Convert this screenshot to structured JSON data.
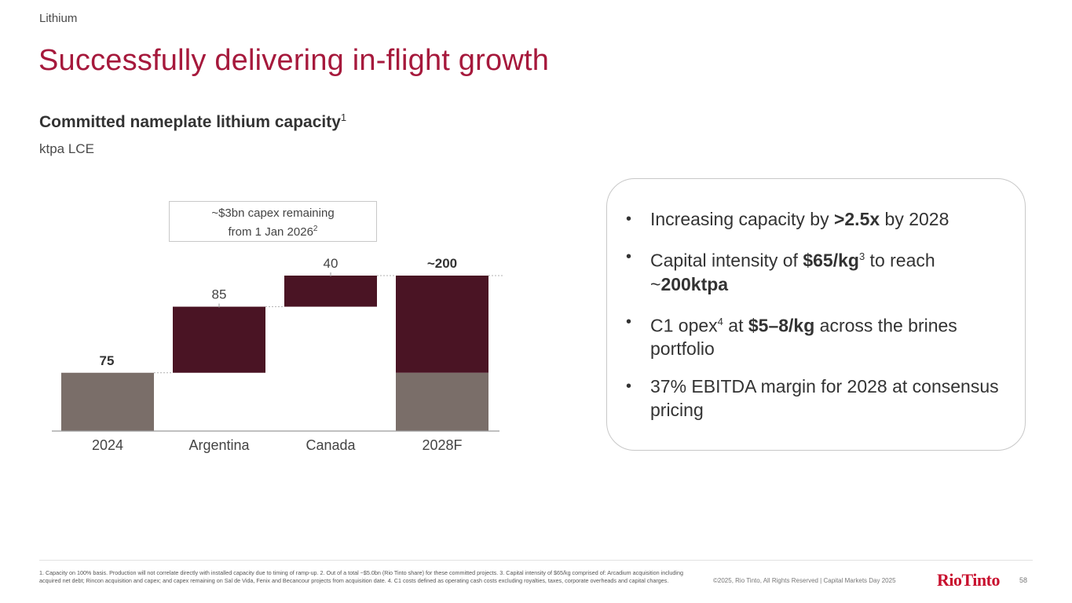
{
  "header": {
    "section": "Lithium",
    "title": "Successfully delivering in-flight growth",
    "subtitle": "Committed nameplate lithium capacity",
    "subtitle_sup": "1",
    "unit": "ktpa LCE"
  },
  "capex_note": {
    "line1": "~$3bn capex remaining",
    "line2": "from 1 Jan 2026",
    "sup": "2"
  },
  "chart_data": {
    "type": "waterfall",
    "title": "Committed nameplate lithium capacity",
    "ylabel": "ktpa LCE",
    "categories": [
      "2024",
      "Argentina",
      "Canada",
      "2028F"
    ],
    "values": [
      75,
      85,
      40,
      200
    ],
    "data_labels": [
      "75",
      "85",
      "40",
      "~200"
    ],
    "base_value_2028F": 75,
    "ylim": [
      0,
      200
    ],
    "colors": {
      "base": "#7a6e69",
      "increment": "#4a1424"
    }
  },
  "callout": {
    "bullets": [
      {
        "pre": "Increasing capacity by ",
        "bold": ">2.5x",
        "post": " by 2028"
      },
      {
        "pre": "Capital intensity of ",
        "bold": "$65/kg",
        "sup": "3",
        "post": " to reach",
        "line2_pre": "~",
        "line2_bold": "200ktpa"
      },
      {
        "pre": "C1 opex",
        "sup": "4",
        "mid": " at ",
        "bold": "$5–8/kg",
        "post": " across the brines portfolio"
      },
      {
        "text": "37% EBITDA margin for 2028 at consensus pricing"
      }
    ]
  },
  "footer": {
    "footnote": "1. Capacity on 100% basis. Production will not correlate directly with installed capacity due to timing of ramp-up. 2. Out of a total ~$5.0bn (Rio Tinto share) for these committed projects. 3. Capital intensity of $65/kg comprised of: Arcadium acquisition including acquired net debt; Rincon acquisition and capex; and capex remaining on Sal de Vida, Fenix and Becancour projects from acquisition date. 4. C1 costs defined as operating cash costs excluding royalties, taxes, corporate overheads and capital charges.",
    "copyright": "©2025, Rio Tinto, All Rights Reserved  |  Capital Markets Day 2025",
    "logo": "RioTinto",
    "page": "58"
  },
  "colors": {
    "title": "#a6193c",
    "logo": "#c8102e"
  }
}
